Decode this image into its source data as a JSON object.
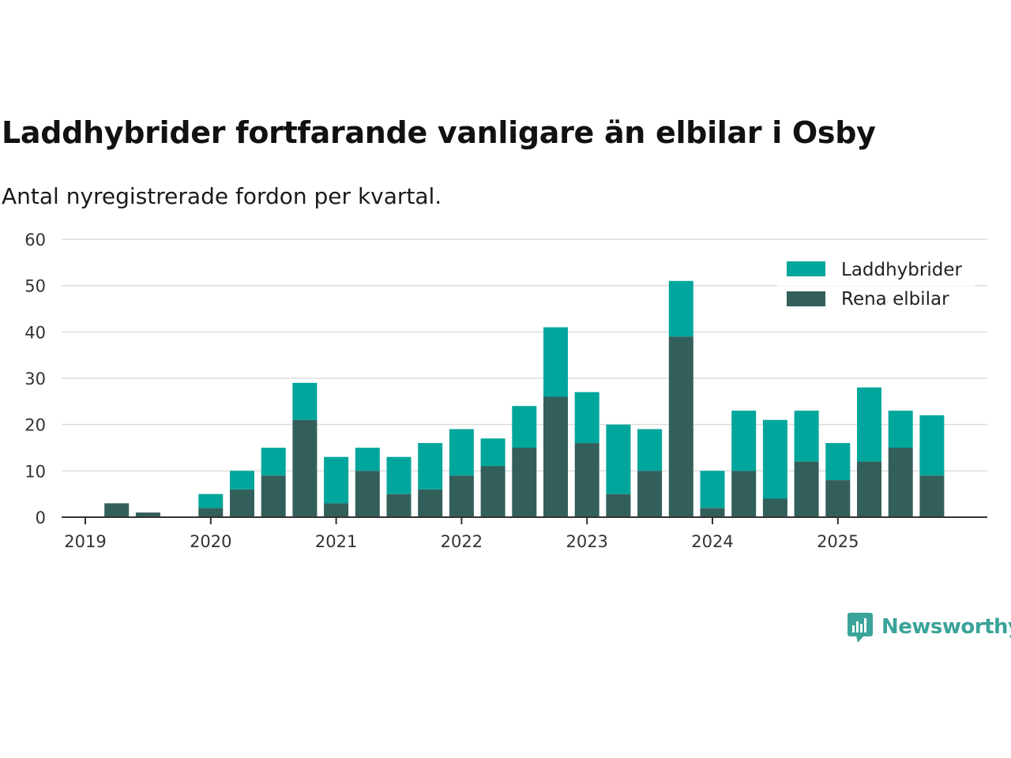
{
  "title": "Laddhybrider fortfarande vanligare än elbilar i Osby",
  "subtitle": "Antal nyregistrerade fordon per kvartal.",
  "brand": {
    "name": "Newsworthy",
    "color": "#3aa39a"
  },
  "colors": {
    "laddhybrider": "#00a69c",
    "elbilar": "#335f5b",
    "grid": "#dddddd",
    "axis": "#333333"
  },
  "chart_data": {
    "type": "bar",
    "stacked": true,
    "title": "Laddhybrider fortfarande vanligare än elbilar i Osby",
    "subtitle": "Antal nyregistrerade fordon per kvartal.",
    "xlabel": "",
    "ylabel": "",
    "ylim": [
      0,
      60
    ],
    "yticks": [
      0,
      10,
      20,
      30,
      40,
      50,
      60
    ],
    "xticks": [
      {
        "label": "2019",
        "index": 0
      },
      {
        "label": "2020",
        "index": 4
      },
      {
        "label": "2021",
        "index": 8
      },
      {
        "label": "2022",
        "index": 12
      },
      {
        "label": "2023",
        "index": 16
      },
      {
        "label": "2024",
        "index": 20
      },
      {
        "label": "2025",
        "index": 24
      }
    ],
    "categories": [
      "2019 Q1",
      "2019 Q2",
      "2019 Q3",
      "2019 Q4",
      "2020 Q1",
      "2020 Q2",
      "2020 Q3",
      "2020 Q4",
      "2021 Q1",
      "2021 Q2",
      "2021 Q3",
      "2021 Q4",
      "2022 Q1",
      "2022 Q2",
      "2022 Q3",
      "2022 Q4",
      "2023 Q1",
      "2023 Q2",
      "2023 Q3",
      "2023 Q4",
      "2024 Q1",
      "2024 Q2",
      "2024 Q3",
      "2024 Q4",
      "2025 Q1",
      "2025 Q2",
      "2025 Q3",
      "2025 Q4"
    ],
    "legend_position": "top-right",
    "series": [
      {
        "name": "Rena elbilar",
        "color": "#335f5b",
        "values": [
          0,
          3,
          1,
          0,
          2,
          6,
          9,
          21,
          3,
          10,
          5,
          6,
          9,
          11,
          15,
          26,
          16,
          5,
          10,
          39,
          2,
          10,
          4,
          12,
          8,
          12,
          15,
          9
        ]
      },
      {
        "name": "Laddhybrider",
        "color": "#00a69c",
        "values": [
          0,
          0,
          0,
          0,
          3,
          4,
          6,
          8,
          10,
          5,
          8,
          10,
          10,
          6,
          9,
          15,
          11,
          15,
          9,
          12,
          8,
          13,
          17,
          11,
          8,
          16,
          8,
          13
        ]
      }
    ],
    "legend": [
      "Laddhybrider",
      "Rena elbilar"
    ]
  }
}
